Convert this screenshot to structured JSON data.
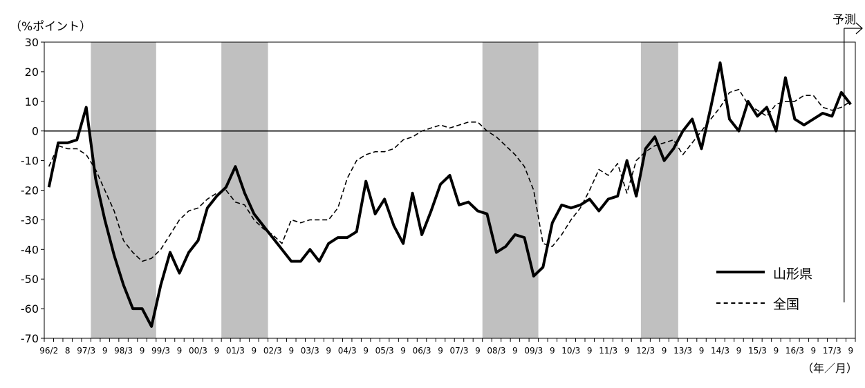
{
  "chart_data": {
    "type": "line",
    "unit_label": "（%ポイント）",
    "forecast_label": "予測",
    "xaxis_title": "（年／月）",
    "ylim": [
      -70,
      30
    ],
    "yticks": [
      30,
      20,
      10,
      0,
      -10,
      -20,
      -30,
      -40,
      -50,
      -60,
      -70
    ],
    "xlim": [
      -0.5,
      86.5
    ],
    "tick_labels": [
      "96/2",
      "8",
      "97/3",
      "9",
      "98/3",
      "9",
      "99/3",
      "9",
      "00/3",
      "9",
      "01/3",
      "9",
      "02/3",
      "9",
      "03/3",
      "9",
      "04/3",
      "9",
      "05/3",
      "9",
      "06/3",
      "9",
      "07/3",
      "9",
      "08/3",
      "9",
      "09/3",
      "9",
      "10/3",
      "9",
      "11/3",
      "9",
      "12/3",
      "9",
      "13/3",
      "9",
      "14/3",
      "9",
      "15/3",
      "9",
      "16/3",
      "9",
      "17/3",
      "9"
    ],
    "tick_positions": [
      0,
      2,
      4,
      6,
      8,
      10,
      12,
      14,
      16,
      18,
      20,
      22,
      24,
      26,
      28,
      30,
      32,
      34,
      36,
      38,
      40,
      42,
      44,
      46,
      48,
      50,
      52,
      54,
      56,
      58,
      60,
      62,
      64,
      66,
      68,
      70,
      72,
      74,
      76,
      78,
      80,
      82,
      84,
      86
    ],
    "shaded_periods": [
      [
        4.5,
        11.5
      ],
      [
        18.5,
        23.5
      ],
      [
        46.5,
        52.5
      ],
      [
        63.5,
        67.5
      ]
    ],
    "forecast_start": 85.3,
    "grid": false,
    "legend_position": "bottom-right",
    "series": [
      {
        "name": "山形県",
        "style": "solid",
        "color": "#000000",
        "x": [
          0,
          1,
          2,
          3,
          4,
          5,
          6,
          7,
          8,
          9,
          10,
          11,
          12,
          13,
          14,
          15,
          16,
          17,
          18,
          19,
          20,
          21,
          22,
          23,
          24,
          25,
          26,
          27,
          28,
          29,
          30,
          31,
          32,
          33,
          34,
          35,
          36,
          37,
          38,
          39,
          40,
          41,
          42,
          43,
          44,
          45,
          46,
          47,
          48,
          49,
          50,
          51,
          52,
          53,
          54,
          55,
          56,
          57,
          58,
          59,
          60,
          61,
          62,
          63,
          64,
          65,
          66,
          67,
          68,
          69,
          70,
          71,
          72,
          73,
          74,
          75,
          76,
          77,
          78,
          79,
          80,
          81,
          82,
          83,
          84,
          85,
          86
        ],
        "values": [
          -19,
          -4,
          -4,
          -3,
          8,
          -16,
          -30,
          -42,
          -52,
          -60,
          -60,
          -66,
          -52,
          -41,
          -48,
          -41,
          -37,
          -26,
          -22,
          -19,
          -12,
          -21,
          -28,
          -32,
          -36,
          -40,
          -44,
          -44,
          -40,
          -44,
          -38,
          -36,
          -36,
          -34,
          -17,
          -28,
          -23,
          -32,
          -38,
          -21,
          -35,
          -27,
          -18,
          -15,
          -25,
          -24,
          -27,
          -28,
          -41,
          -39,
          -35,
          -36,
          -49,
          -46,
          -31,
          -25,
          -26,
          -25,
          -23,
          -27,
          -23,
          -22,
          -10,
          -22,
          -6,
          -2,
          -10,
          -6,
          0,
          4,
          -6,
          8,
          23,
          4,
          0,
          10,
          5,
          8,
          0,
          18,
          4,
          2,
          4,
          6,
          5,
          13,
          9
        ]
      },
      {
        "name": "全国",
        "style": "dashed",
        "color": "#000000",
        "x": [
          0,
          1,
          2,
          3,
          4,
          5,
          6,
          7,
          8,
          9,
          10,
          11,
          12,
          13,
          14,
          15,
          16,
          17,
          18,
          19,
          20,
          21,
          22,
          23,
          24,
          25,
          26,
          27,
          28,
          29,
          30,
          31,
          32,
          33,
          34,
          35,
          36,
          37,
          38,
          39,
          40,
          41,
          42,
          43,
          44,
          45,
          46,
          47,
          48,
          49,
          50,
          51,
          52,
          53,
          54,
          55,
          56,
          57,
          58,
          59,
          60,
          61,
          62,
          63,
          64,
          65,
          66,
          67,
          68,
          69,
          70,
          71,
          72,
          73,
          74,
          75,
          76,
          77,
          78,
          79,
          80,
          81,
          82,
          83,
          84,
          85,
          86
        ],
        "values": [
          -12,
          -5,
          -6,
          -6,
          -8,
          -13,
          -20,
          -27,
          -37,
          -41,
          -44,
          -43,
          -40,
          -35,
          -30,
          -27,
          -26,
          -23,
          -21,
          -20,
          -24,
          -25,
          -30,
          -33,
          -35,
          -38,
          -30,
          -31,
          -30,
          -30,
          -30,
          -26,
          -16,
          -10,
          -8,
          -7,
          -7,
          -6,
          -3,
          -2,
          0,
          1,
          2,
          1,
          2,
          3,
          3,
          0,
          -2,
          -5,
          -8,
          -12,
          -20,
          -38,
          -39,
          -35,
          -30,
          -26,
          -20,
          -13,
          -15,
          -11,
          -21,
          -10,
          -7,
          -5,
          -4,
          -3,
          -8,
          -4,
          0,
          4,
          8,
          13,
          14,
          9,
          7,
          5,
          9,
          10,
          10,
          12,
          12,
          8,
          7,
          8,
          10
        ]
      }
    ]
  }
}
